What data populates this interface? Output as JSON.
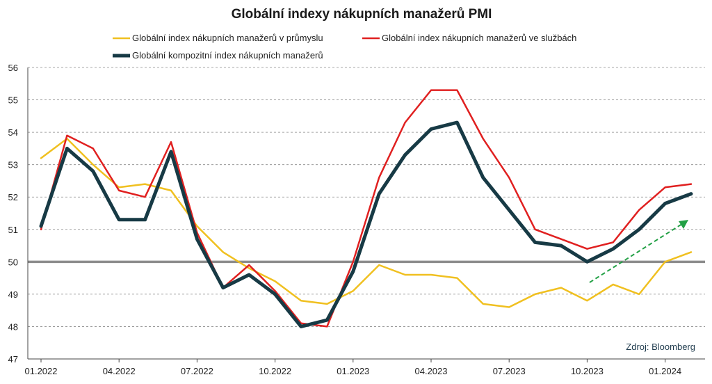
{
  "chart_data": {
    "type": "line",
    "title": "Globální indexy nákupních manažerů PMI",
    "source": "Zdroj: Bloomberg",
    "ylim": [
      47,
      56
    ],
    "yticks": [
      47,
      48,
      49,
      50,
      51,
      52,
      53,
      54,
      55,
      56
    ],
    "grid": true,
    "reference_line": 50,
    "legend_position": "top",
    "x_tick_labels": [
      "01.2022",
      "04.2022",
      "07.2022",
      "10.2022",
      "01.2023",
      "04.2023",
      "07.2023",
      "10.2023",
      "01.2024"
    ],
    "x": [
      "01.2022",
      "02.2022",
      "03.2022",
      "04.2022",
      "05.2022",
      "06.2022",
      "07.2022",
      "08.2022",
      "09.2022",
      "10.2022",
      "11.2022",
      "12.2022",
      "01.2023",
      "02.2023",
      "03.2023",
      "04.2023",
      "05.2023",
      "06.2023",
      "07.2023",
      "08.2023",
      "09.2023",
      "10.2023",
      "11.2023",
      "12.2023",
      "01.2024",
      "02.2024"
    ],
    "series": [
      {
        "name": "Globální index nákupních manažerů v průmyslu",
        "color": "#f0c020",
        "values": [
          53.2,
          53.8,
          53.0,
          52.3,
          52.4,
          52.2,
          51.1,
          50.3,
          49.8,
          49.4,
          48.8,
          48.7,
          49.1,
          49.9,
          49.6,
          49.6,
          49.5,
          48.7,
          48.6,
          49.0,
          49.2,
          48.8,
          49.3,
          49.0,
          50.0,
          50.3
        ]
      },
      {
        "name": "Globální index nákupních manažerů ve službách",
        "color": "#e02020",
        "values": [
          51.0,
          53.9,
          53.5,
          52.2,
          52.0,
          53.7,
          50.9,
          49.2,
          49.9,
          49.1,
          48.1,
          48.0,
          50.0,
          52.6,
          54.3,
          55.3,
          55.3,
          53.8,
          52.6,
          51.0,
          50.7,
          50.4,
          50.6,
          51.6,
          52.3,
          52.4
        ]
      },
      {
        "name": "Globální kompozitní index nákupních manažerů",
        "color": "#173a45",
        "values": [
          51.1,
          53.5,
          52.8,
          51.3,
          51.3,
          53.4,
          50.7,
          49.2,
          49.6,
          49.0,
          48.0,
          48.2,
          49.7,
          52.1,
          53.3,
          54.1,
          54.3,
          52.6,
          51.6,
          50.6,
          50.5,
          50.0,
          50.4,
          51.0,
          51.8,
          52.1
        ]
      }
    ],
    "trend_arrow_color": "#22a045"
  }
}
